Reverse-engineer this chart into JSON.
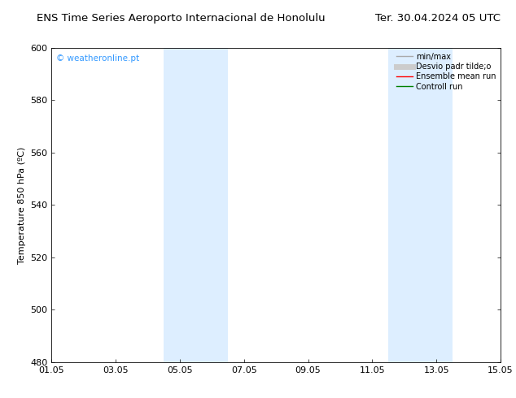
{
  "title_left": "ENS Time Series Aeroporto Internacional de Honolulu",
  "title_right": "Ter. 30.04.2024 05 UTC",
  "ylabel": "Temperature 850 hPa (ºC)",
  "ylim": [
    480,
    600
  ],
  "yticks": [
    480,
    500,
    520,
    540,
    560,
    580,
    600
  ],
  "xtick_labels": [
    "01.05",
    "03.05",
    "05.05",
    "07.05",
    "09.05",
    "11.05",
    "13.05",
    "15.05"
  ],
  "xtick_positions_days": [
    0,
    2,
    4,
    6,
    8,
    10,
    12,
    14
  ],
  "xlim": [
    0,
    14
  ],
  "shaded_bands": [
    {
      "xstart_day": 3.5,
      "xend_day": 5.5,
      "color": "#ddeeff"
    },
    {
      "xstart_day": 10.5,
      "xend_day": 12.5,
      "color": "#ddeeff"
    }
  ],
  "watermark_text": "© weatheronline.pt",
  "watermark_color": "#3399ff",
  "legend_entries": [
    {
      "label": "min/max",
      "color": "#aaaaaa",
      "linestyle": "-",
      "linewidth": 1.0
    },
    {
      "label": "Desvio padr tilde;o",
      "color": "#cccccc",
      "linestyle": "-",
      "linewidth": 5
    },
    {
      "label": "Ensemble mean run",
      "color": "#ff0000",
      "linestyle": "-",
      "linewidth": 1.0
    },
    {
      "label": "Controll run",
      "color": "#008000",
      "linestyle": "-",
      "linewidth": 1.0
    }
  ],
  "background_color": "#ffffff",
  "spine_color": "#000000",
  "title_fontsize": 9.5,
  "tick_fontsize": 8,
  "ylabel_fontsize": 8,
  "legend_fontsize": 7
}
